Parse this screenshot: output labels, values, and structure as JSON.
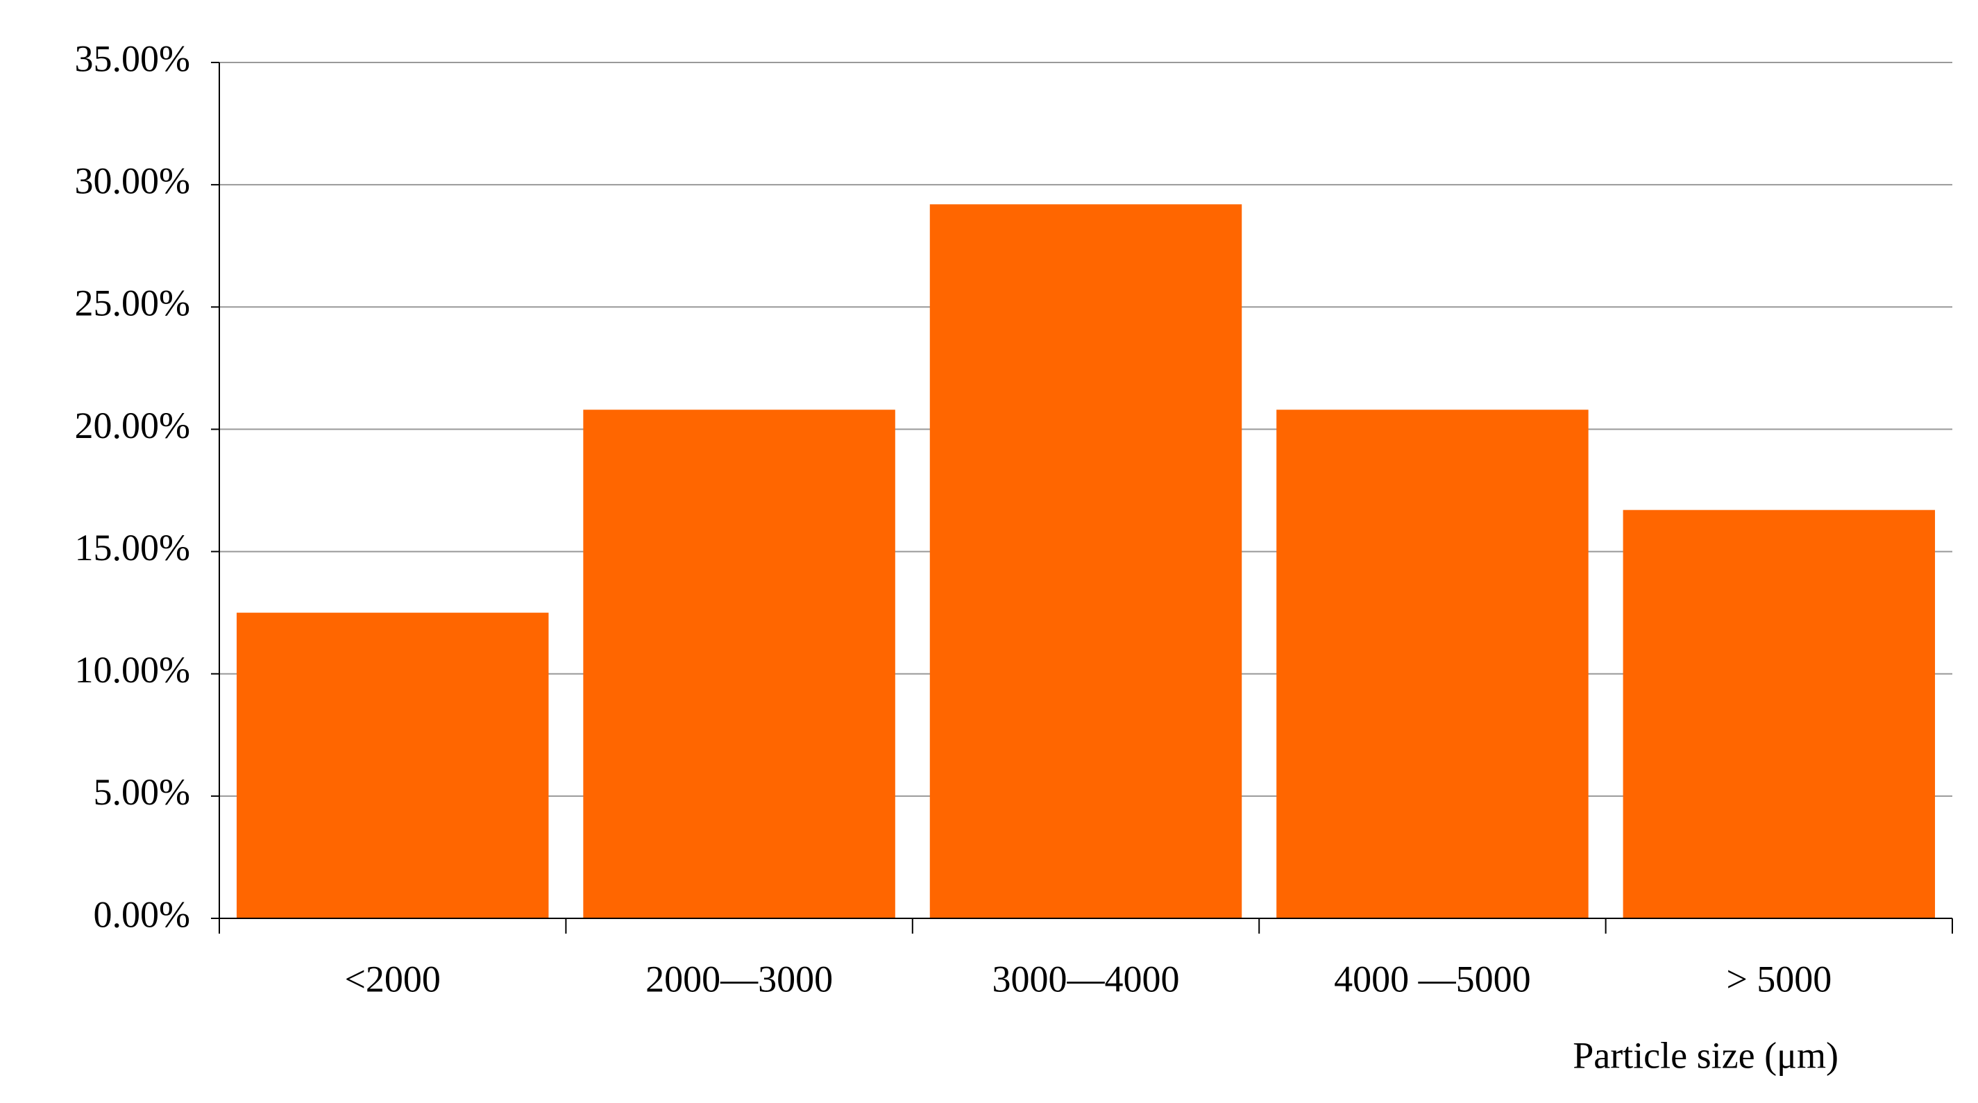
{
  "chart_data": {
    "type": "bar",
    "categories": [
      "<2000",
      "2000—3000",
      "3000—4000",
      "4000 —5000",
      "> 5000"
    ],
    "values": [
      12.5,
      20.8,
      29.2,
      20.8,
      16.7
    ],
    "color": "#ff6600",
    "x_label": "Particle size (μm)",
    "ylim": [
      0,
      35
    ],
    "yticks": [
      {
        "value": 0,
        "label": "0.00%"
      },
      {
        "value": 5,
        "label": "5.00%"
      },
      {
        "value": 10,
        "label": "10.00%"
      },
      {
        "value": 15,
        "label": "15.00%"
      },
      {
        "value": 20,
        "label": "20.00%"
      },
      {
        "value": 25,
        "label": "25.00%"
      },
      {
        "value": 30,
        "label": "30.00%"
      },
      {
        "value": 35,
        "label": "35.00%"
      }
    ],
    "grid": true
  }
}
